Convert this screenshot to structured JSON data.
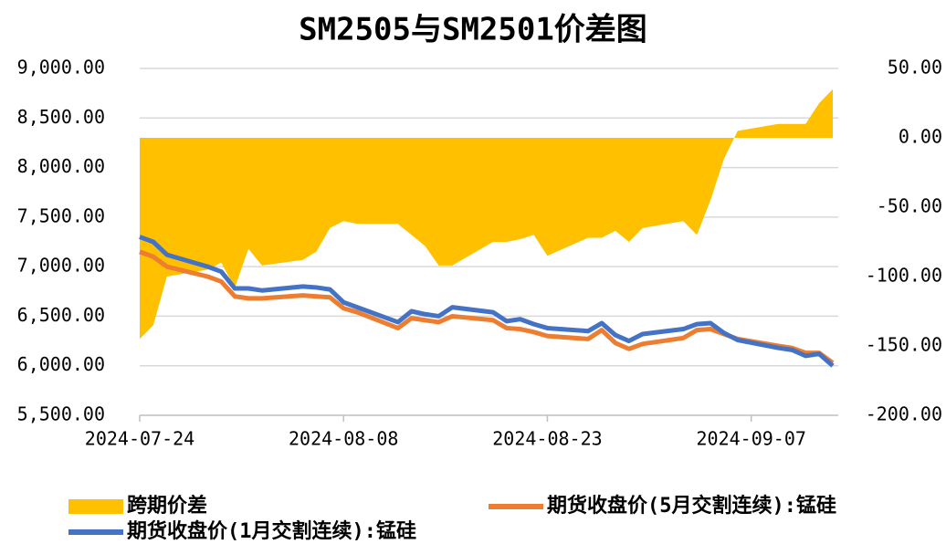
{
  "chart_data": {
    "type": "line",
    "title": "SM2505与SM2501价差图",
    "x": [
      "2024-07-24",
      "2024-07-25",
      "2024-07-26",
      "2024-07-29",
      "2024-07-30",
      "2024-07-31",
      "2024-08-01",
      "2024-08-02",
      "2024-08-05",
      "2024-08-06",
      "2024-08-07",
      "2024-08-08",
      "2024-08-09",
      "2024-08-12",
      "2024-08-13",
      "2024-08-14",
      "2024-08-15",
      "2024-08-16",
      "2024-08-19",
      "2024-08-20",
      "2024-08-21",
      "2024-08-22",
      "2024-08-23",
      "2024-08-26",
      "2024-08-27",
      "2024-08-28",
      "2024-08-29",
      "2024-08-30",
      "2024-09-02",
      "2024-09-03",
      "2024-09-04",
      "2024-09-05",
      "2024-09-06",
      "2024-09-09",
      "2024-09-10",
      "2024-09-11",
      "2024-09-12",
      "2024-09-13"
    ],
    "series": [
      {
        "name": "跨期价差",
        "color": "#ffc000",
        "axis": "y2",
        "style": "area",
        "values": [
          -145,
          -135,
          -100,
          -95,
          -90,
          -108,
          -80,
          -92,
          -88,
          -82,
          -65,
          -60,
          -62,
          -62,
          -70,
          -78,
          -92,
          -92,
          -75,
          -75,
          -73,
          -70,
          -85,
          -72,
          -72,
          -67,
          -75,
          -65,
          -60,
          -70,
          -45,
          -15,
          5,
          10,
          10,
          10,
          25,
          35
        ]
      },
      {
        "name": "期货收盘价(5月交割连续):锰硅",
        "color": "#ed7d31",
        "values": [
          7150,
          7100,
          7000,
          6900,
          6850,
          6700,
          6680,
          6680,
          6710,
          6700,
          6690,
          6580,
          6540,
          6380,
          6480,
          6460,
          6440,
          6500,
          6460,
          6380,
          6370,
          6340,
          6300,
          6270,
          6360,
          6230,
          6170,
          6220,
          6280,
          6360,
          6370,
          6320,
          6270,
          6200,
          6180,
          6130,
          6130,
          6030
        ]
      },
      {
        "name": "期货收盘价(1月交割连续):锰硅",
        "color": "#4472c4",
        "values": [
          7300,
          7250,
          7120,
          7000,
          6950,
          6780,
          6780,
          6760,
          6800,
          6790,
          6770,
          6640,
          6590,
          6440,
          6550,
          6520,
          6500,
          6590,
          6540,
          6450,
          6470,
          6420,
          6380,
          6350,
          6430,
          6310,
          6250,
          6320,
          6370,
          6420,
          6430,
          6330,
          6260,
          6180,
          6160,
          6100,
          6120,
          6000
        ]
      }
    ],
    "xlim": [
      "2024-07-24",
      "2024-09-13"
    ],
    "xticks": [
      "2024-07-24",
      "2024-08-08",
      "2024-08-23",
      "2024-09-07"
    ],
    "ylim": [
      5500,
      9000
    ],
    "yticks": [
      {
        "value": 5500,
        "label": "5,500.00"
      },
      {
        "value": 6000,
        "label": "6,000.00"
      },
      {
        "value": 6500,
        "label": "6,500.00"
      },
      {
        "value": 7000,
        "label": "7,000.00"
      },
      {
        "value": 7500,
        "label": "7,500.00"
      },
      {
        "value": 8000,
        "label": "8,000.00"
      },
      {
        "value": 8500,
        "label": "8,500.00"
      },
      {
        "value": 9000,
        "label": "9,000.00"
      }
    ],
    "y2lim": [
      -200,
      50
    ],
    "y2ticks": [
      {
        "value": -200,
        "label": "-200.00"
      },
      {
        "value": -150,
        "label": "-150.00"
      },
      {
        "value": -100,
        "label": "-100.00"
      },
      {
        "value": -50,
        "label": "-50.00"
      },
      {
        "value": 0,
        "label": "0.00"
      },
      {
        "value": 50,
        "label": "50.00"
      }
    ],
    "grid": true,
    "legend": "bottom"
  }
}
